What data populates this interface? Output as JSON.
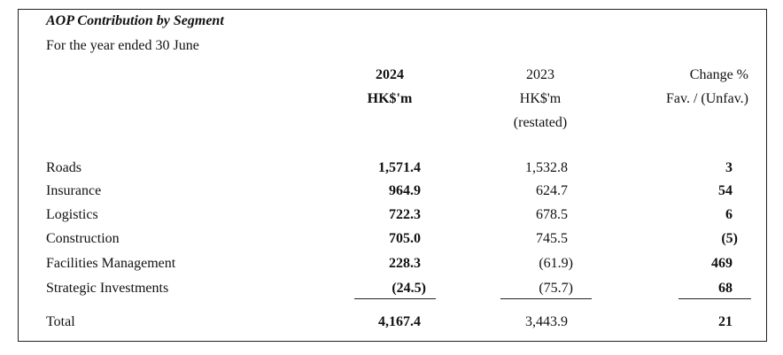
{
  "header": {
    "title": "AOP Contribution by Segment",
    "subtitle": "For the year ended 30 June"
  },
  "table": {
    "columns": [
      {
        "lines": [
          "2024",
          "HK$'m"
        ]
      },
      {
        "lines": [
          "2023",
          "HK$'m",
          "(restated)"
        ]
      },
      {
        "lines": [
          "Change %",
          "Fav. / (Unfav.)"
        ]
      }
    ],
    "rows": [
      [
        "Roads",
        "1,571.4",
        "1,532.8",
        "3"
      ],
      [
        "Insurance",
        "964.9",
        "624.7",
        "54"
      ],
      [
        "Logistics",
        "722.3",
        "678.5",
        "6"
      ],
      [
        "Construction",
        "705.0",
        "745.5",
        "(5)"
      ],
      [
        "Facilities Management",
        "228.3",
        "(61.9)",
        "469"
      ],
      [
        "Strategic Investments",
        "(24.5)",
        "(75.7)",
        "68"
      ]
    ],
    "total": [
      "Total",
      "4,167.4",
      "3,443.9",
      "21"
    ]
  }
}
